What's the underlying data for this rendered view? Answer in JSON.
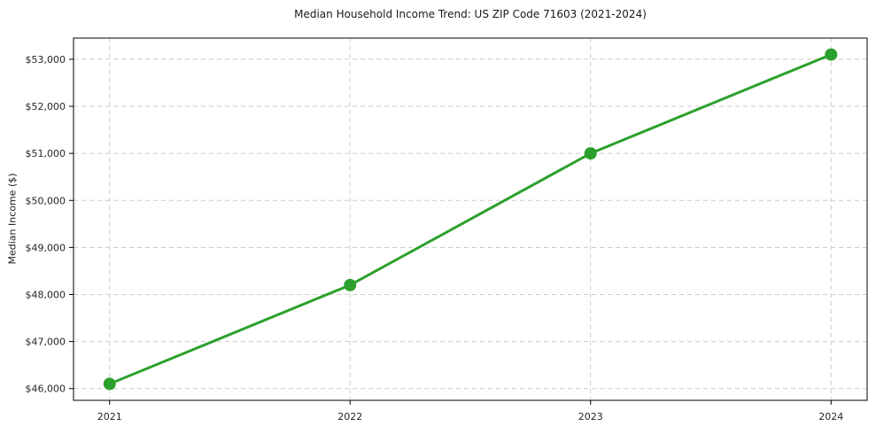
{
  "chart_data": {
    "type": "line",
    "title": "Median Household Income Trend: US ZIP Code 71603 (2021-2024)",
    "xlabel": "",
    "ylabel": "Median Income ($)",
    "x": [
      2021,
      2022,
      2023,
      2024
    ],
    "series": [
      {
        "name": "Median Household Income",
        "values": [
          46100,
          48200,
          51000,
          53100
        ]
      }
    ],
    "xticks": {
      "values": [
        2021,
        2022,
        2023,
        2024
      ],
      "labels": [
        "2021",
        "2022",
        "2023",
        "2024"
      ]
    },
    "yticks": {
      "values": [
        46000,
        47000,
        48000,
        49000,
        50000,
        51000,
        52000,
        53000
      ],
      "labels": [
        "$46,000",
        "$47,000",
        "$48,000",
        "$49,000",
        "$50,000",
        "$51,000",
        "$52,000",
        "$53,000"
      ]
    },
    "xlim": [
      2020.85,
      2024.15
    ],
    "ylim": [
      45750,
      53450
    ],
    "grid": "dashed",
    "legend_position": "none",
    "marker": "circle",
    "colors": {
      "line": "#2ca02c",
      "marker": "#2ca02c",
      "grid": "#cccccc",
      "spine": "#000000",
      "tick_text": "#262626",
      "title_text": "#1a1a1a",
      "background": "#ffffff"
    }
  }
}
